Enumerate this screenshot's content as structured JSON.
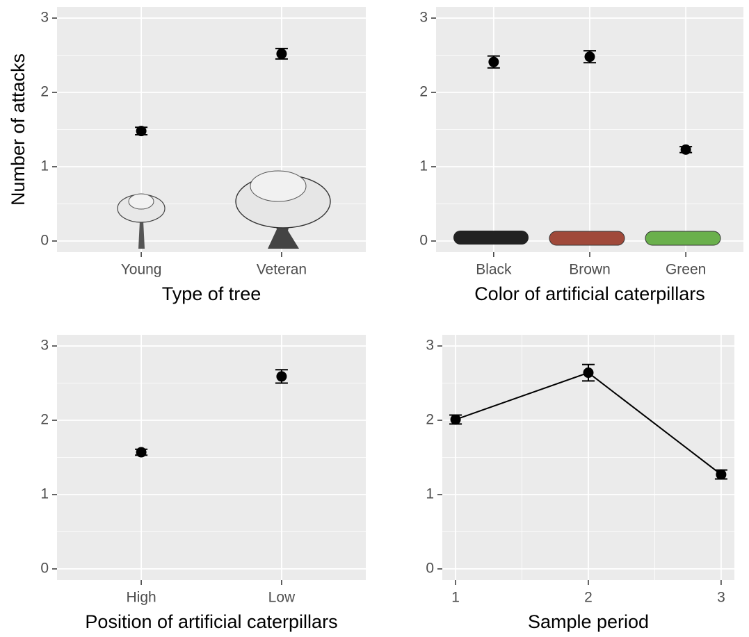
{
  "chart_data": [
    {
      "type": "scatter",
      "xlabel": "Type of tree",
      "ylabel": "Number of attacks",
      "categories": [
        "Young",
        "Veteran"
      ],
      "values": [
        1.48,
        2.52
      ],
      "errors": [
        0.05,
        0.07
      ],
      "color": "#000000",
      "ylim": [
        -0.15,
        3.15
      ],
      "yticks": [
        0,
        1,
        2,
        3
      ],
      "grid": true
    },
    {
      "type": "scatter",
      "xlabel": "Color of artificial caterpillars",
      "categories": [
        "Black",
        "Brown",
        "Green"
      ],
      "values": [
        2.41,
        2.48,
        1.23
      ],
      "errors": [
        0.08,
        0.08,
        0.04
      ],
      "color": "#000000",
      "ylim": [
        -0.15,
        3.15
      ],
      "yticks": [
        0,
        1,
        2,
        3
      ],
      "grid": true
    },
    {
      "type": "scatter",
      "xlabel": "Position of artificial caterpillars",
      "categories": [
        "High",
        "Low"
      ],
      "values": [
        1.57,
        2.59
      ],
      "errors": [
        0.04,
        0.09
      ],
      "color": "#000000",
      "ylim": [
        -0.15,
        3.15
      ],
      "yticks": [
        0,
        1,
        2,
        3
      ],
      "grid": true
    },
    {
      "type": "line",
      "xlabel": "Sample period",
      "x": [
        1,
        2,
        3
      ],
      "values": [
        2.01,
        2.64,
        1.27
      ],
      "errors": [
        0.06,
        0.11,
        0.06
      ],
      "color": "#000000",
      "xlim": [
        0.9,
        3.1
      ],
      "xticks": [
        1,
        2,
        3
      ],
      "ylim": [
        -0.15,
        3.15
      ],
      "yticks": [
        0,
        1,
        2,
        3
      ],
      "grid": true
    }
  ]
}
